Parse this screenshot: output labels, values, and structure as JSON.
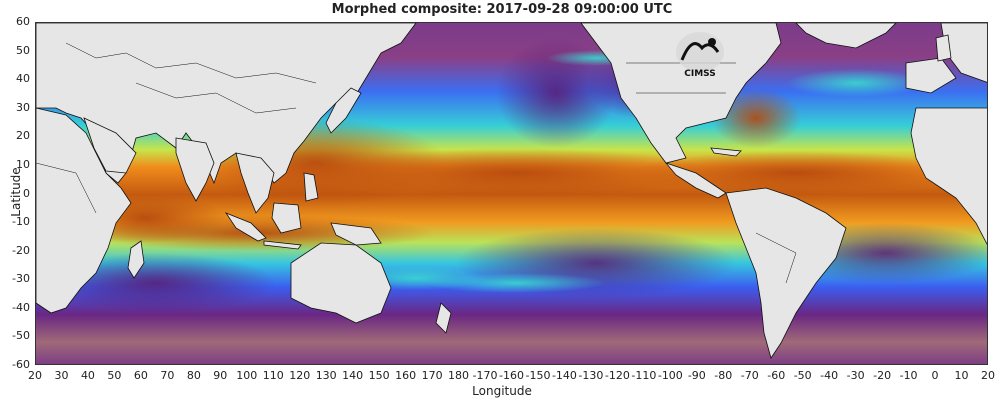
{
  "title": "Morphed composite: 2017-09-28 09:00:00 UTC",
  "xlabel": "Longitude",
  "ylabel": "Latitude",
  "logo_text": "CIMSS",
  "axes": {
    "y_ticks": [
      "60",
      "50",
      "40",
      "30",
      "20",
      "10",
      "0",
      "-10",
      "-20",
      "-30",
      "-40",
      "-50",
      "-60"
    ],
    "x_ticks": [
      "20",
      "30",
      "40",
      "50",
      "60",
      "70",
      "80",
      "90",
      "100",
      "110",
      "120",
      "130",
      "140",
      "150",
      "160",
      "170",
      "180",
      "-170",
      "-160",
      "-150",
      "-140",
      "-130",
      "-120",
      "-110",
      "-100",
      "-90",
      "-80",
      "-70",
      "-60",
      "-50",
      "-40",
      "-30",
      "-20",
      "-10",
      "0",
      "10",
      "20"
    ]
  },
  "colors": {
    "land": "#e6e6e6",
    "dry": "#6a1f7a",
    "low": "#9a5f8a",
    "mid_low": "#3a6cf0",
    "mid": "#38d9d0",
    "mid_high": "#c9e64b",
    "high": "#f08a1a",
    "very_high": "#b5470e"
  }
}
